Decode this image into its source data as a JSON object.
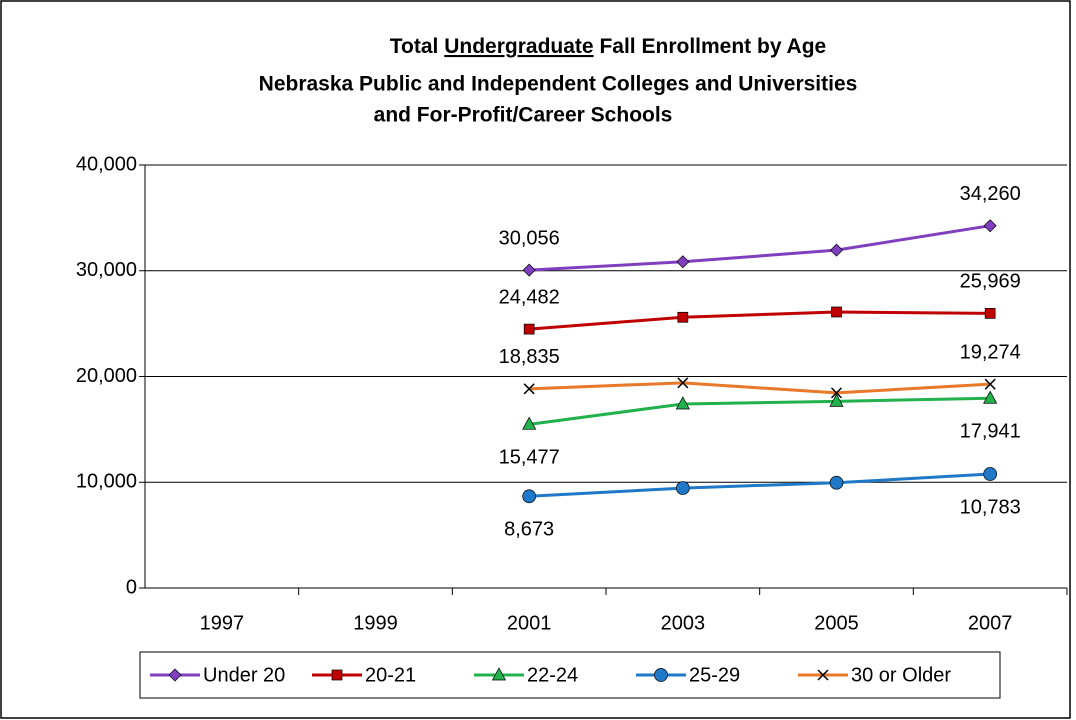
{
  "chart_data": {
    "type": "line",
    "title": [
      "Total",
      "Undergraduate",
      "Fall Enrollment by Age",
      "Nebraska Public and Independent Colleges and Universities",
      "and For-Profit/Career Schools"
    ],
    "categories": [
      "1997",
      "1999",
      "2001",
      "2003",
      "2005",
      "2007"
    ],
    "ylim": [
      0,
      40000
    ],
    "yticks": [
      {
        "value": 0,
        "label": "0"
      },
      {
        "value": 10000,
        "label": "10,000"
      },
      {
        "value": 20000,
        "label": "20,000"
      },
      {
        "value": 30000,
        "label": "30,000"
      },
      {
        "value": 40000,
        "label": "40,000"
      }
    ],
    "grid": true,
    "legend": "bottom",
    "series": [
      {
        "name": "Under 20",
        "color": "#7f3fbf",
        "marker": "diamond",
        "label_position": "above",
        "values": [
          null,
          null,
          30056,
          30850,
          31950,
          34260
        ],
        "value_labels": [
          null,
          null,
          "30,056",
          null,
          null,
          "34,260"
        ]
      },
      {
        "name": "20-21",
        "color": "#c00000",
        "marker": "square",
        "label_position": "above",
        "values": [
          null,
          null,
          24482,
          25600,
          26100,
          25969
        ],
        "value_labels": [
          null,
          null,
          "24,482",
          null,
          null,
          "25,969"
        ]
      },
      {
        "name": "22-24",
        "color": "#22b14c",
        "marker": "triangle",
        "label_position": "below",
        "values": [
          null,
          null,
          15477,
          17400,
          17650,
          17941
        ],
        "value_labels": [
          null,
          null,
          "15,477",
          null,
          null,
          "17,941"
        ]
      },
      {
        "name": "25-29",
        "color": "#1f78c8",
        "marker": "circle",
        "label_position": "below",
        "values": [
          null,
          null,
          8673,
          9450,
          9950,
          10783
        ],
        "value_labels": [
          null,
          null,
          "8,673",
          null,
          null,
          "10,783"
        ]
      },
      {
        "name": "30 or Older",
        "color": "#e8782a",
        "marker": "x",
        "label_position": "above",
        "values": [
          null,
          null,
          18835,
          19400,
          18450,
          19274
        ],
        "value_labels": [
          null,
          null,
          "18,835",
          null,
          null,
          "19,274"
        ]
      }
    ]
  }
}
